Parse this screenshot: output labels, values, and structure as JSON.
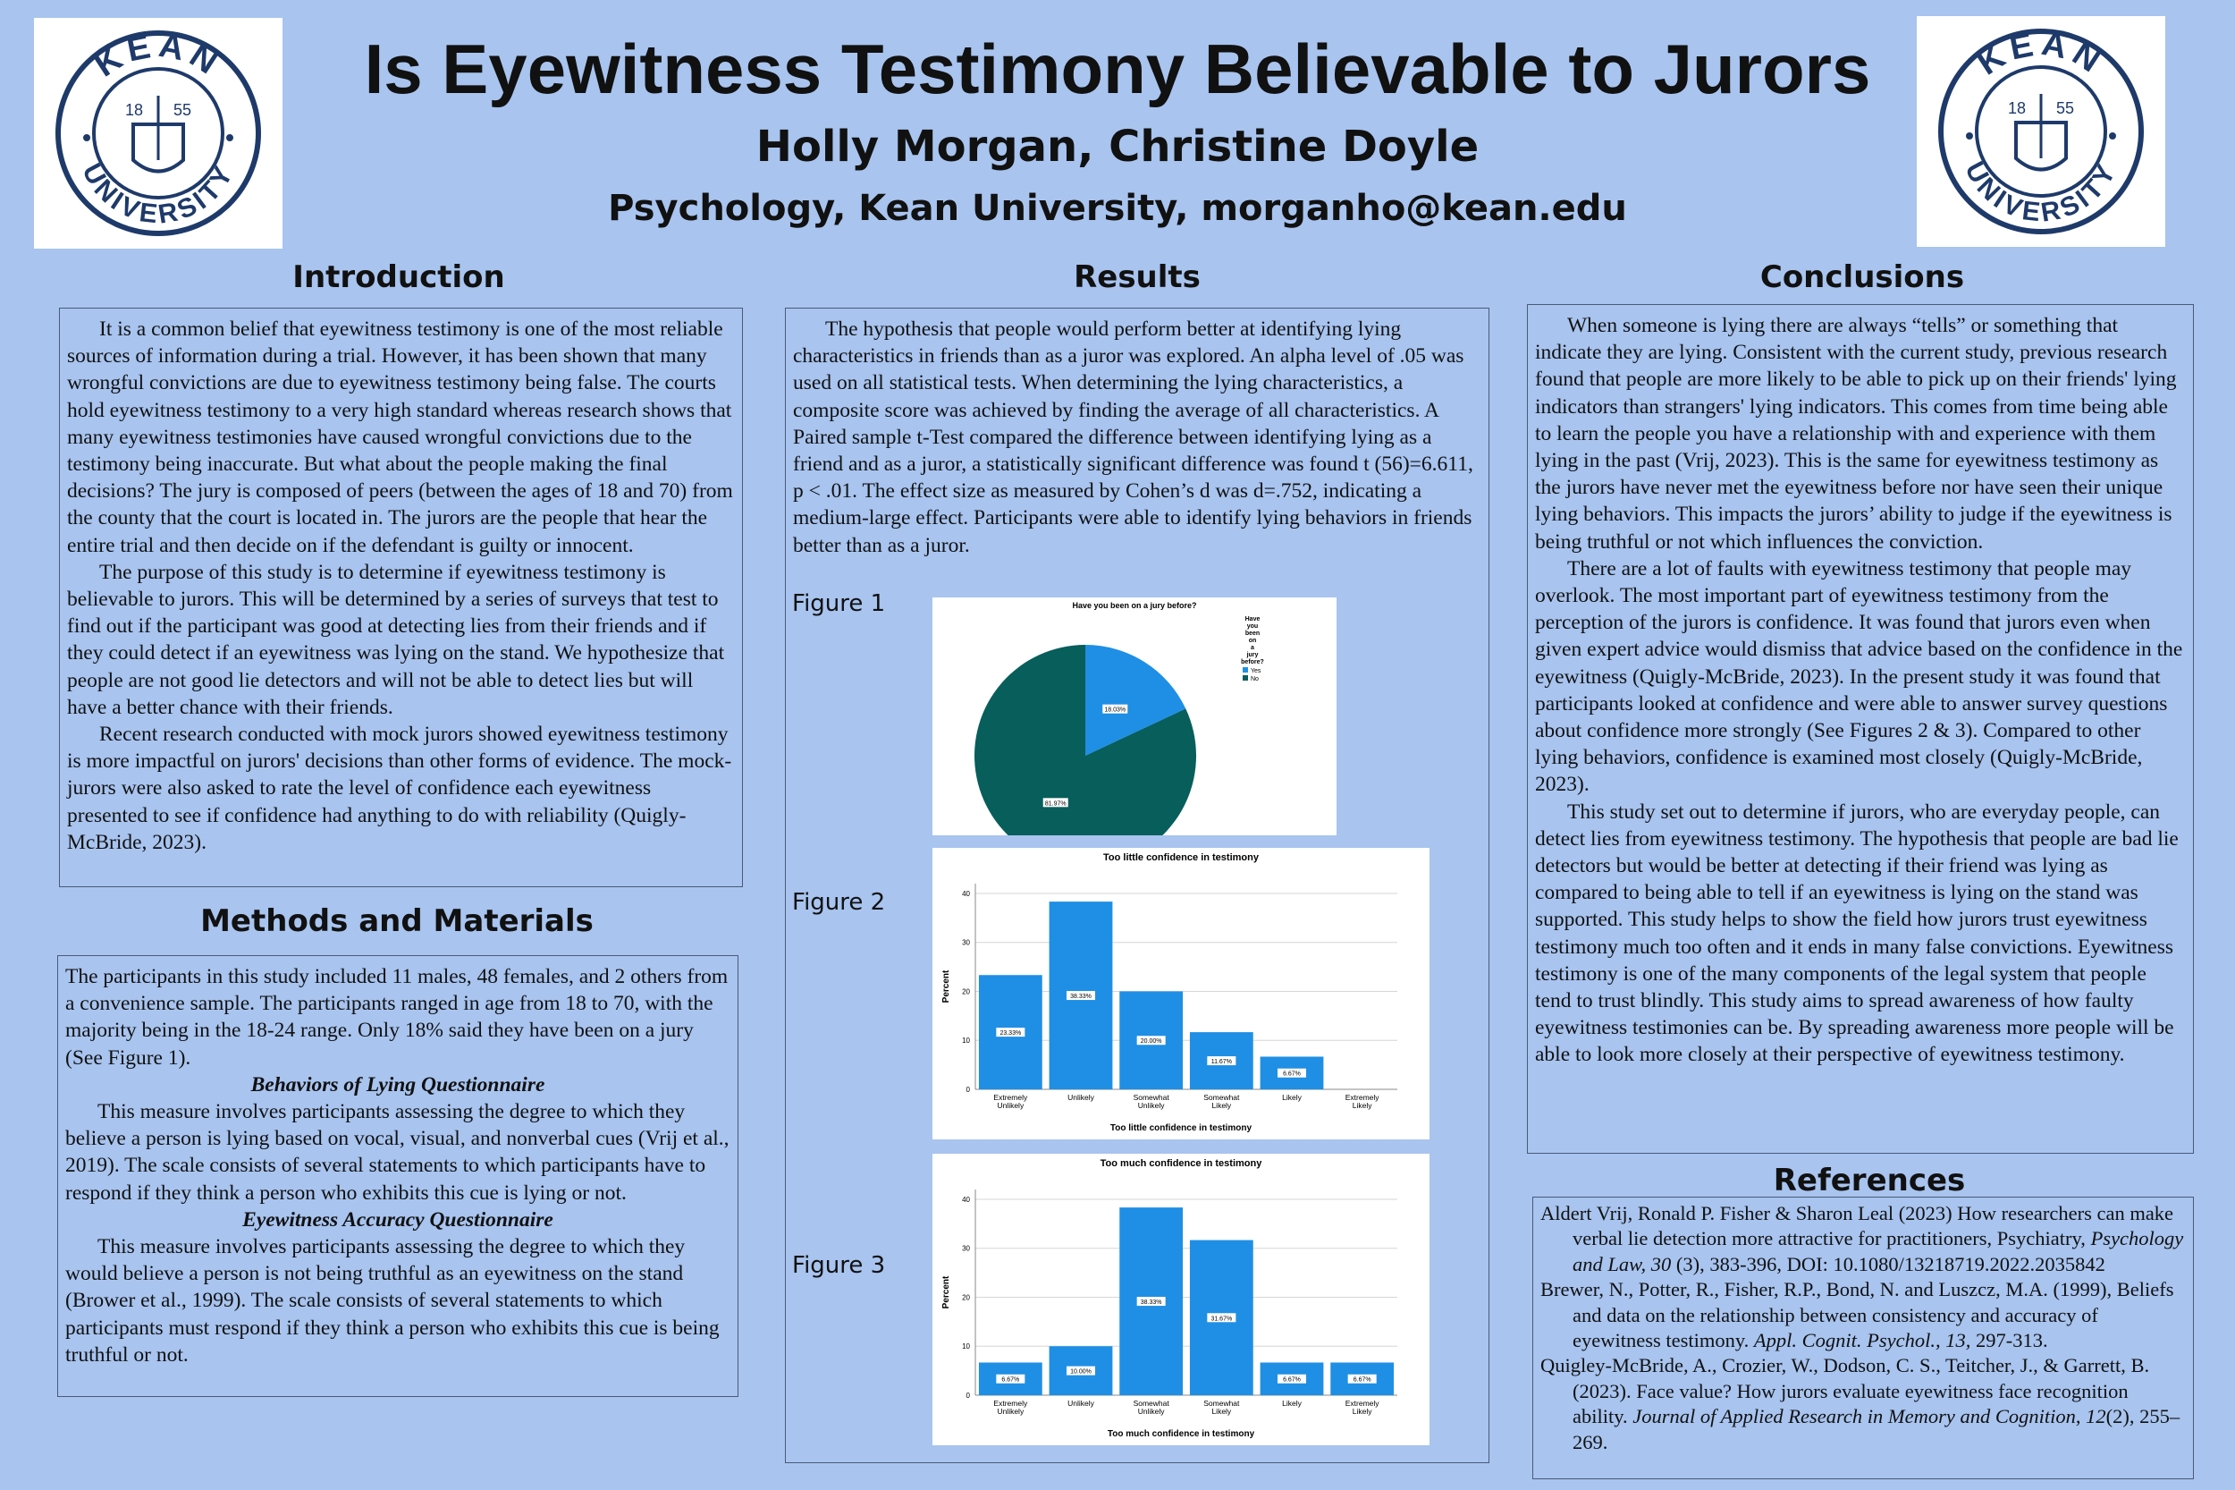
{
  "header": {
    "title": "Is Eyewitness Testimony Believable to Jurors",
    "authors": "Holly Morgan, Christine Doyle",
    "affiliation": "Psychology, Kean University, morganho@kean.edu",
    "logo": {
      "top": "KEAN",
      "bottom": "UNIVERSITY",
      "year_left": "18",
      "year_right": "55"
    }
  },
  "introduction": {
    "heading": "Introduction",
    "paragraphs": [
      "It is a common belief that eyewitness testimony is one of the most reliable sources of information during a trial. However, it has been shown that many wrongful convictions are due to eyewitness testimony being false. The courts hold eyewitness testimony to a very high standard whereas research shows that many eyewitness testimonies have caused wrongful convictions due to the testimony being inaccurate. But what about the people making the final decisions? The jury is composed of peers (between the ages of 18 and 70) from the county that the court is located in. The jurors are the people that hear the entire trial and then decide on if the defendant is guilty or innocent.",
      "The purpose of this study is to determine if eyewitness testimony is believable to jurors. This will be determined by a series of surveys that test to find out if the participant was good at detecting lies from their friends and if they could detect if an eyewitness was lying on the stand. We hypothesize that people are not good lie detectors and will not be able to detect lies but will have a better chance with their friends.",
      "Recent research conducted with mock jurors showed eyewitness testimony is more impactful on jurors' decisions than other forms of evidence. The mock-jurors were also asked to rate the level of confidence each eyewitness presented to see if confidence had anything to do with reliability (Quigly-McBride, 2023)."
    ]
  },
  "methods": {
    "heading": "Methods and Materials",
    "intro": "The participants in this study included 11 males, 48 females, and 2 others from a convenience sample. The participants ranged in age from 18 to 70, with the majority being in the 18-24 range. Only 18% said they have been on a jury (See Figure 1).",
    "sub1": "Behaviors of Lying Questionnaire",
    "p1": "This measure involves participants assessing the degree to which they believe a person is lying based on vocal, visual, and nonverbal cues (Vrij et al., 2019). The scale consists of several statements to which participants have to respond if they think a person who exhibits this cue is lying or not.",
    "sub2": "Eyewitness Accuracy Questionnaire",
    "p2": "This measure involves participants assessing the degree to which they would believe a person is not being truthful as an eyewitness on the stand (Brower et al., 1999). The scale consists of several statements to which participants must respond if they think a person who exhibits this cue is being truthful or not."
  },
  "results": {
    "heading": "Results",
    "paragraph": "The hypothesis that people would perform better at identifying lying characteristics in friends than as a juror was explored. An alpha level of .05 was used on all statistical tests. When determining the lying characteristics, a composite score was achieved by finding the average of all characteristics. A Paired sample t-Test compared the difference between identifying lying as a friend and as a juror, a statistically significant difference was found t (56)=6.611, p < .01. The effect size as measured by Cohen’s d was d=.752, indicating a medium-large effect. Participants were able to identify lying behaviors in friends better than as a juror.",
    "fig1_label": "Figure 1",
    "fig2_label": "Figure 2",
    "fig3_label": "Figure 3"
  },
  "conclusions": {
    "heading": "Conclusions",
    "paragraphs": [
      "When someone is lying there are always “tells” or something that indicate they are lying. Consistent with the current study, previous research found that people are more likely to be able to pick up on their friends' lying indicators than strangers' lying indicators. This comes from time being able to learn the people you have a relationship with and experience with them lying in the past (Vrij, 2023). This is the same for eyewitness testimony as the jurors have never met the eyewitness before nor have seen their unique lying behaviors. This impacts the jurors’ ability to judge if the eyewitness is being truthful or not which influences the conviction.",
      "There are a lot of faults with eyewitness testimony that people may overlook. The most important part of eyewitness testimony from the perception of the jurors is confidence. It was found that jurors even when given expert advice would dismiss that advice based on the confidence in the eyewitness (Quigly-McBride, 2023). In the present study it was found that participants looked at confidence and were able to answer survey questions about confidence more strongly (See Figures 2 & 3). Compared to other lying behaviors, confidence is examined most closely (Quigly-McBride, 2023).",
      "This study set out to determine if jurors, who are everyday people, can detect lies from eyewitness testimony. The hypothesis that people are bad lie detectors but would be better at detecting if their friend was lying as compared to being able to tell if an eyewitness is lying on the stand was supported. This study helps to show the field how jurors trust eyewitness testimony much too often and it ends in many false convictions. Eyewitness testimony is one of the many components of the legal system that people tend to trust blindly. This study aims to spread awareness of how faulty eyewitness testimonies can be. By spreading awareness more people will be able to look more closely at their perspective of eyewitness testimony."
    ]
  },
  "references": {
    "heading": "References",
    "ref1_a": "Aldert Vrij, Ronald P. Fisher & Sharon Leal (2023) How researchers can make verbal lie detection more attractive for practitioners, Psychiatry, ",
    "ref1_i": "Psychology and Law, 30",
    "ref1_b": " (3), 383-396, DOI: 10.1080/13218719.2022.2035842",
    "ref2_a": "Brewer, N., Potter, R., Fisher, R.P., Bond, N. and Luszcz, M.A. (1999), Beliefs and data on the relationship between consistency and accuracy of eyewitness testimony. ",
    "ref2_i": "Appl. Cognit. Psychol., 13,",
    "ref2_b": " 297-313.",
    "ref3_a": "Quigley-McBride, A., Crozier, W., Dodson, C. S., Teitcher, J., & Garrett, B. (2023). Face value? How jurors evaluate eyewitness face recognition ability. ",
    "ref3_i": "Journal of Applied Research in Memory and Cognition",
    "ref3_c": ", ",
    "ref3_i2": "12",
    "ref3_b": "(2), 255–269."
  },
  "chart_data": [
    {
      "type": "pie",
      "title": "Have you been on a jury before?",
      "legend_title": "Have you been on a jury before?",
      "legend_position": "right",
      "categories": [
        "Yes",
        "No"
      ],
      "values": [
        18.03,
        81.97
      ],
      "labels": [
        "18.03%",
        "81.97%"
      ],
      "colors": [
        "#1f8fe5",
        "#075e5b"
      ]
    },
    {
      "type": "bar",
      "title": "Too little confidence in testimony",
      "xlabel": "Too little confidence in testimony",
      "ylabel": "Percent",
      "categories": [
        "Extremely Unlikely",
        "Unlikely",
        "Somewhat Unlikely",
        "Somewhat Likely",
        "Likely",
        "Extremely Likely"
      ],
      "values": [
        23.33,
        38.33,
        20.0,
        11.67,
        6.67,
        0
      ],
      "labels": [
        "23.33%",
        "38.33%",
        "20.00%",
        "11.67%",
        "6.67%",
        ""
      ],
      "yticks": [
        0,
        10,
        20,
        30,
        40
      ],
      "ylim": [
        0,
        42
      ],
      "color": "#1f8fe5"
    },
    {
      "type": "bar",
      "title": "Too much confidence in testimony",
      "xlabel": "Too much confidence in testimony",
      "ylabel": "Percent",
      "categories": [
        "Extremely Unlikely",
        "Unlikely",
        "Somewhat Unlikely",
        "Somewhat Likely",
        "Likely",
        "Extremely Likely"
      ],
      "values": [
        6.67,
        10.0,
        38.33,
        31.67,
        6.67,
        6.67
      ],
      "labels": [
        "6.67%",
        "10.00%",
        "38.33%",
        "31.67%",
        "6.67%",
        "6.67%"
      ],
      "yticks": [
        0,
        10,
        20,
        30,
        40
      ],
      "ylim": [
        0,
        42
      ],
      "color": "#1f8fe5"
    }
  ]
}
